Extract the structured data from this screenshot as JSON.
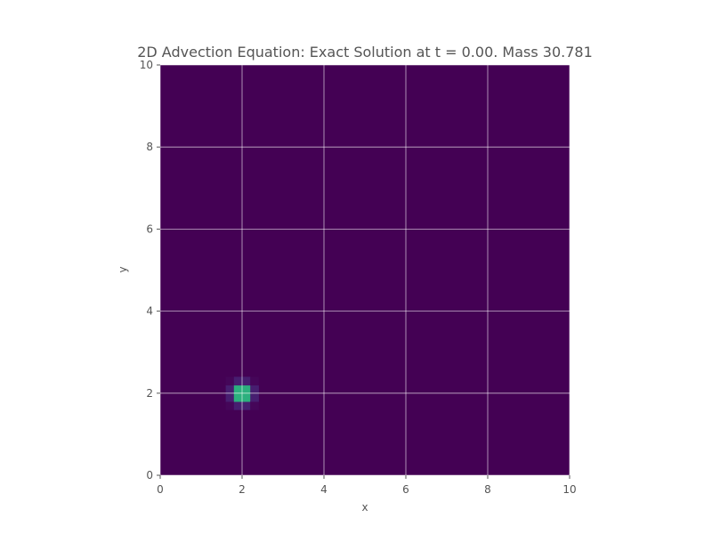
{
  "chart_data": {
    "type": "heatmap",
    "title": "2D Advection Equation: Exact Solution at t = 0.00. Mass 30.781",
    "xlabel": "x",
    "ylabel": "y",
    "xlim": [
      0,
      10
    ],
    "ylim": [
      0,
      10
    ],
    "xticks": [
      "0",
      "2",
      "4",
      "6",
      "8",
      "10"
    ],
    "yticks": [
      "0",
      "2",
      "4",
      "6",
      "8",
      "10"
    ],
    "grid": true,
    "colormap": "viridis",
    "t": 0.0,
    "mass": 30.781,
    "peak_center": [
      2.0,
      2.0
    ],
    "peak_sigma": 0.15,
    "grid_resolution": 50,
    "background_color": "#440154",
    "peak_color": "#fde725"
  }
}
